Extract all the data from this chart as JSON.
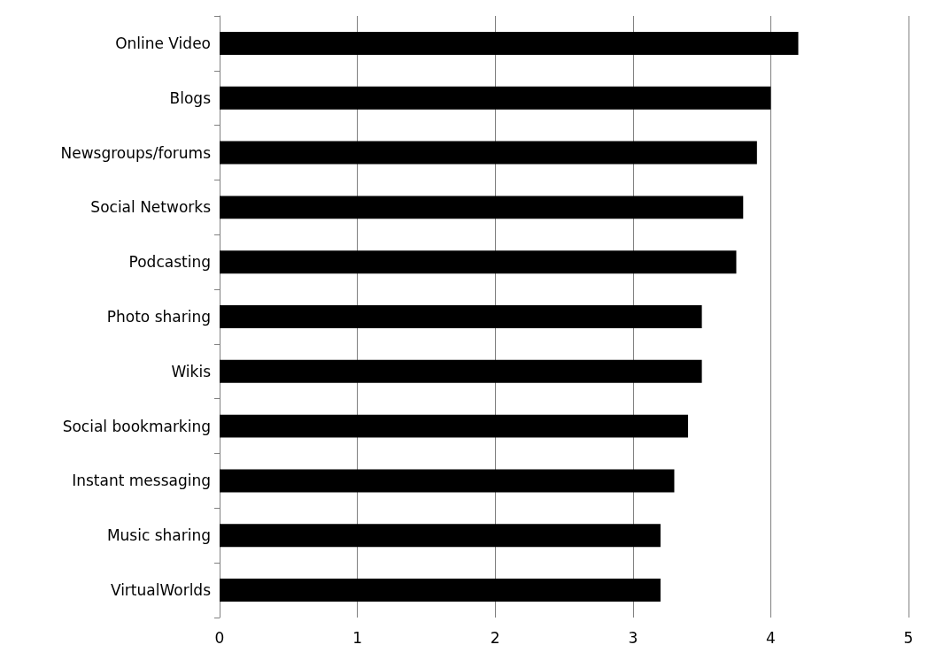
{
  "chart_data": {
    "type": "bar",
    "orientation": "horizontal",
    "categories": [
      "Online Video",
      "Blogs",
      "Newsgroups/forums",
      "Social Networks",
      "Podcasting",
      "Photo sharing",
      "Wikis",
      "Social bookmarking",
      "Instant messaging",
      "Music sharing",
      "VirtualWorlds"
    ],
    "values": [
      4.2,
      4.0,
      3.9,
      3.8,
      3.75,
      3.5,
      3.5,
      3.4,
      3.3,
      3.2,
      3.2
    ],
    "color": "#000000",
    "xlim": [
      0,
      5
    ],
    "xticks": [
      0,
      1,
      2,
      3,
      4,
      5
    ],
    "grid": "x"
  }
}
